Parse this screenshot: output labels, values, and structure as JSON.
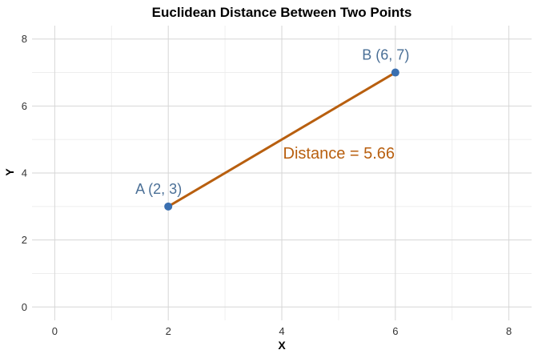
{
  "chart_data": {
    "type": "line",
    "title": "Euclidean Distance Between Two Points",
    "xlabel": "X",
    "ylabel": "Y",
    "xlim": [
      -0.4,
      8.4
    ],
    "ylim": [
      -0.4,
      8.4
    ],
    "xticks": [
      0,
      2,
      4,
      6,
      8
    ],
    "yticks": [
      0,
      2,
      4,
      6,
      8
    ],
    "grid": true,
    "points": [
      {
        "label": "A (2, 3)",
        "x": 2,
        "y": 3
      },
      {
        "label": "B (6, 7)",
        "x": 6,
        "y": 7
      }
    ],
    "segment": {
      "from": [
        2,
        3
      ],
      "to": [
        6,
        7
      ]
    },
    "annotation": {
      "text": "Distance = 5.66",
      "x": 5.4,
      "y": 4.6
    },
    "colors": {
      "points": "#3a6fb0",
      "line": "#b85f0f",
      "point_label": "#4a6f96",
      "annotation": "#b85f0f",
      "grid_major": "#d6d6d6",
      "grid_minor": "#ececec"
    }
  }
}
